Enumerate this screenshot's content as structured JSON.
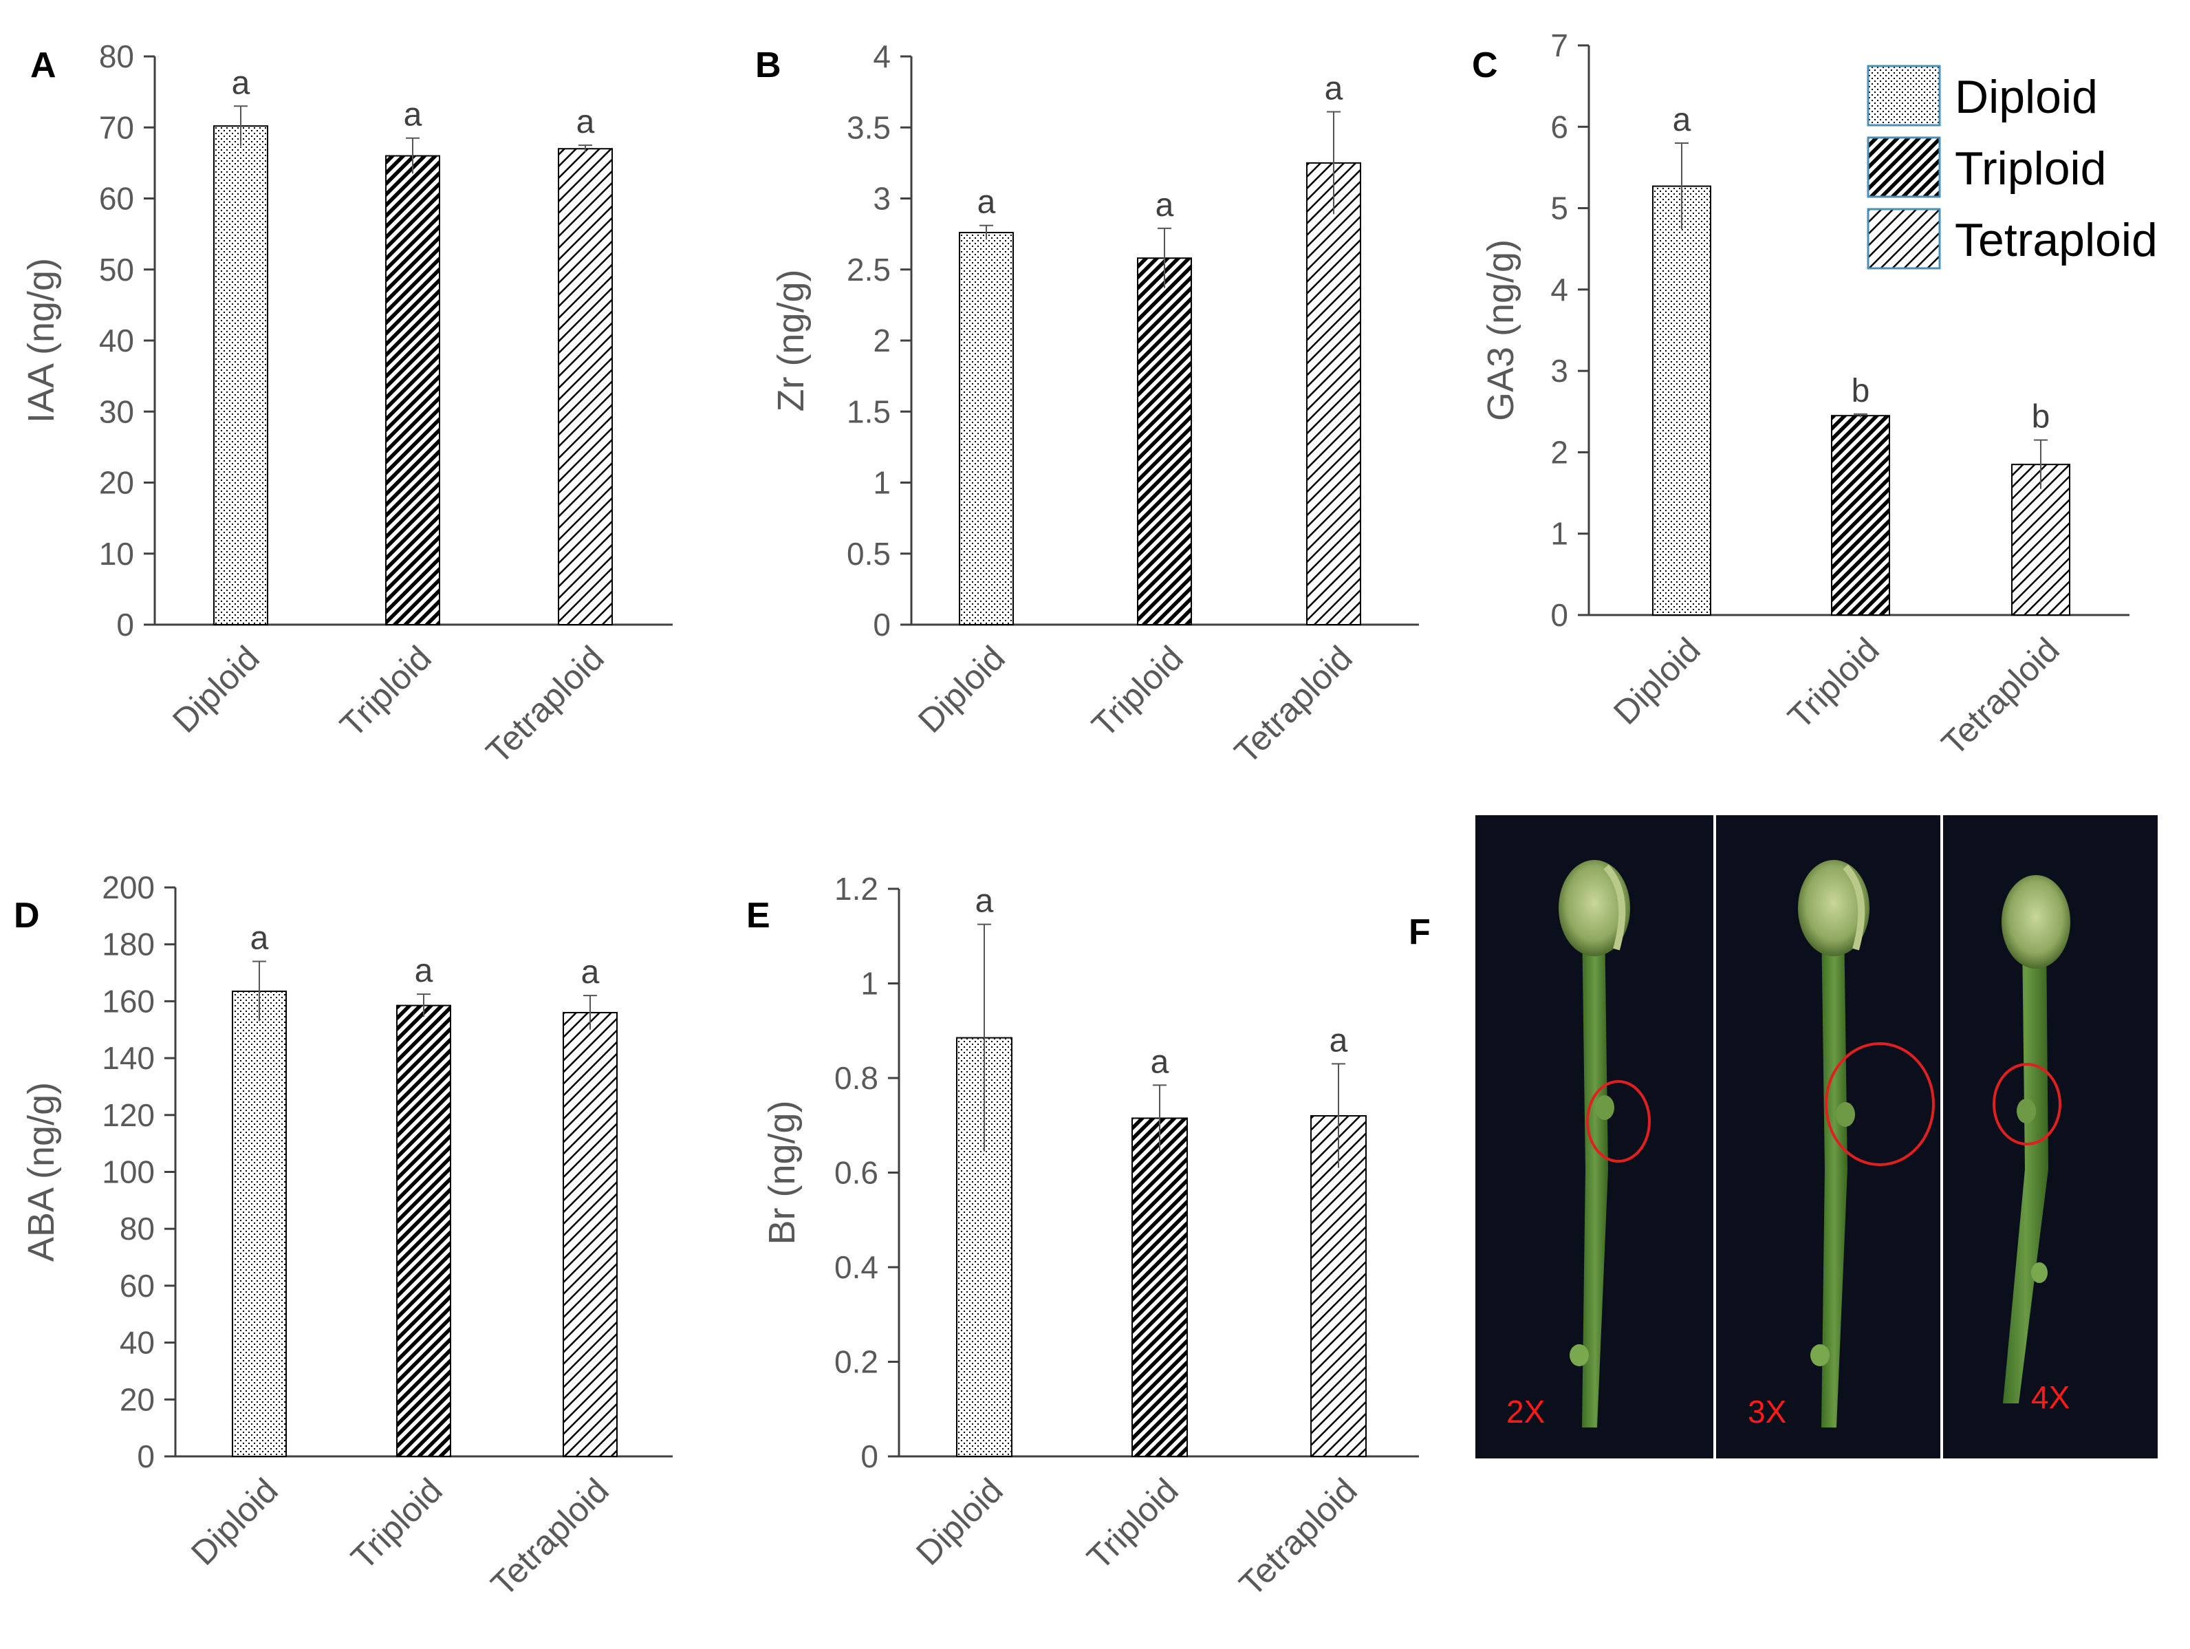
{
  "legend": [
    {
      "label": "Diploid",
      "pattern": "dots"
    },
    {
      "label": "Triploid",
      "pattern": "dense-diagonal"
    },
    {
      "label": "Tetraploid",
      "pattern": "wide-diagonal"
    }
  ],
  "colors": {
    "axis": "#404040",
    "text": "#595959",
    "bar_fill": "#000000",
    "photo_label": "#ff1a1a",
    "legend_border": "#4a8fb5"
  },
  "chart_data": [
    {
      "panel": "A",
      "type": "bar",
      "categories": [
        "Diploid",
        "Triploid",
        "Tetraploid"
      ],
      "values": [
        70.2,
        66.0,
        67.0
      ],
      "errors": [
        2.8,
        2.5,
        0.5
      ],
      "significance": [
        "a",
        "a",
        "a"
      ],
      "ylabel": "IAA (ng/g)",
      "ylim": [
        0,
        80
      ],
      "yticks": [
        "0",
        "10",
        "20",
        "30",
        "40",
        "50",
        "60",
        "70",
        "80"
      ]
    },
    {
      "panel": "B",
      "type": "bar",
      "categories": [
        "Diploid",
        "Triploid",
        "Tetraploid"
      ],
      "values": [
        2.76,
        2.58,
        3.25
      ],
      "errors": [
        0.05,
        0.21,
        0.36
      ],
      "significance": [
        "a",
        "a",
        "a"
      ],
      "ylabel": "Zr (ng/g)",
      "ylim": [
        0,
        4
      ],
      "yticks": [
        "0",
        "0.5",
        "1",
        "1.5",
        "2",
        "2.5",
        "3",
        "3.5",
        "4"
      ]
    },
    {
      "panel": "C",
      "type": "bar",
      "categories": [
        "Diploid",
        "Triploid",
        "Tetraploid"
      ],
      "values": [
        5.27,
        2.45,
        1.85
      ],
      "errors": [
        0.53,
        0.02,
        0.3
      ],
      "significance": [
        "a",
        "b",
        "b"
      ],
      "ylabel": "GA3 (ng/g)",
      "ylim": [
        0,
        7
      ],
      "yticks": [
        "0",
        "1",
        "2",
        "3",
        "4",
        "5",
        "6",
        "7"
      ]
    },
    {
      "panel": "D",
      "type": "bar",
      "categories": [
        "Diploid",
        "Triploid",
        "Tetraploid"
      ],
      "values": [
        163.5,
        158.5,
        156.0
      ],
      "errors": [
        10.5,
        4.0,
        6.0
      ],
      "significance": [
        "a",
        "a",
        "a"
      ],
      "ylabel": "ABA (ng/g)",
      "ylim": [
        0,
        200
      ],
      "yticks": [
        "0",
        "20",
        "40",
        "60",
        "80",
        "100",
        "120",
        "140",
        "160",
        "180",
        "200"
      ]
    },
    {
      "panel": "E",
      "type": "bar",
      "categories": [
        "Diploid",
        "Triploid",
        "Tetraploid"
      ],
      "values": [
        0.885,
        0.715,
        0.72
      ],
      "errors": [
        0.24,
        0.07,
        0.11
      ],
      "significance": [
        "a",
        "a",
        "a"
      ],
      "ylabel": "Br (ng/g)",
      "ylim": [
        0,
        1.2
      ],
      "yticks": [
        "0",
        "0.2",
        "0.4",
        "0.6",
        "0.8",
        "1",
        "1.2"
      ]
    }
  ],
  "photo": {
    "panel": "F",
    "labels": [
      "2X",
      "3X",
      "4X"
    ]
  }
}
